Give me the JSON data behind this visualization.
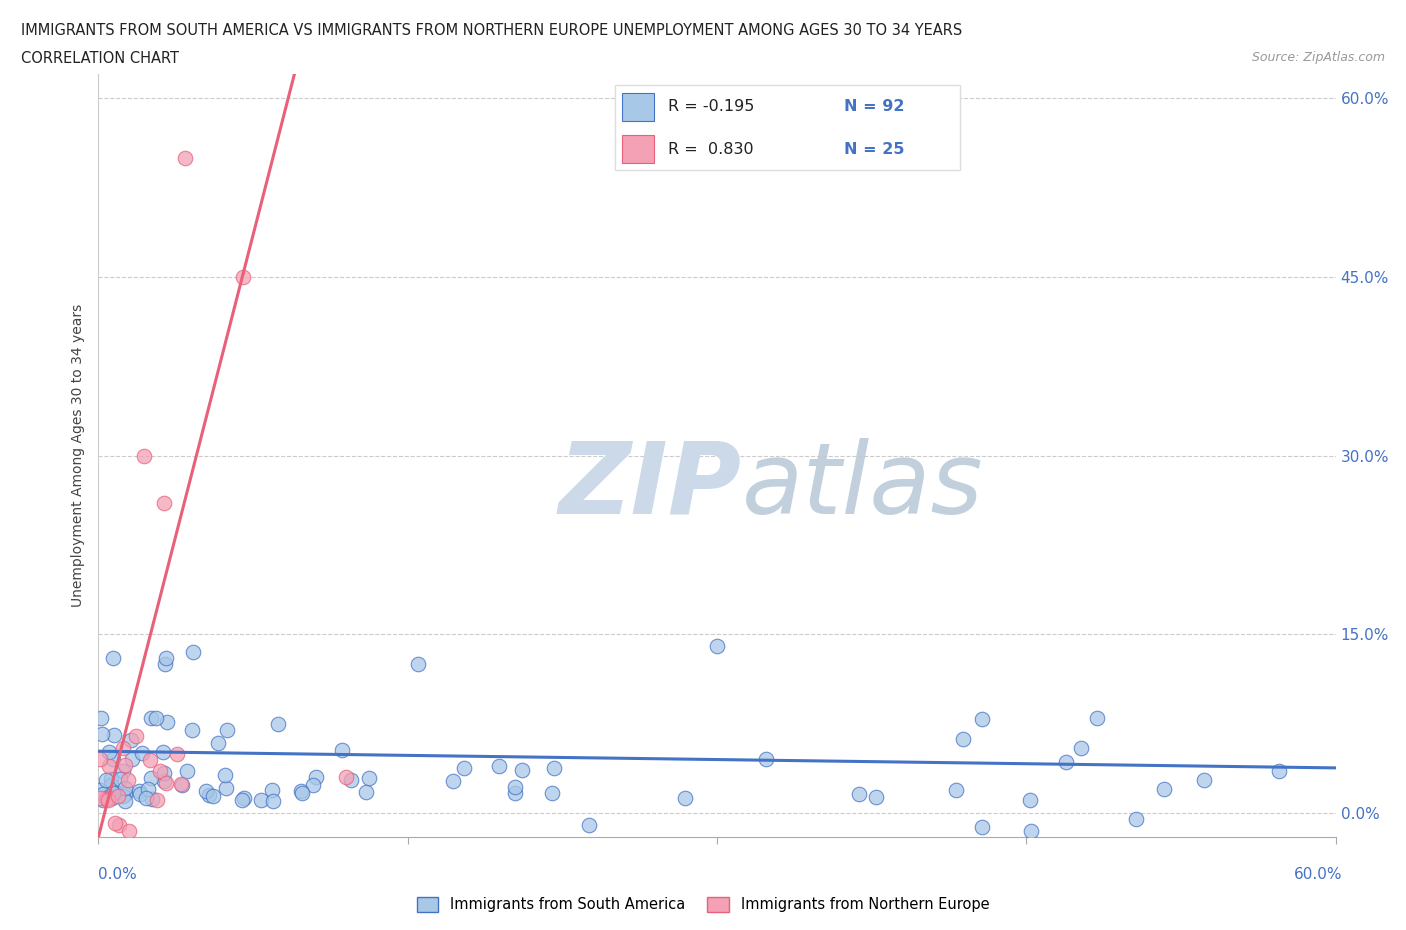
{
  "title_line1": "IMMIGRANTS FROM SOUTH AMERICA VS IMMIGRANTS FROM NORTHERN EUROPE UNEMPLOYMENT AMONG AGES 30 TO 34 YEARS",
  "title_line2": "CORRELATION CHART",
  "source_text": "Source: ZipAtlas.com",
  "ylabel": "Unemployment Among Ages 30 to 34 years",
  "ytick_values": [
    0.0,
    0.15,
    0.3,
    0.45,
    0.6
  ],
  "xlim": [
    0.0,
    0.6
  ],
  "ylim": [
    -0.02,
    0.62
  ],
  "color_blue": "#a8c8e8",
  "color_blue_line": "#4472c4",
  "color_pink": "#f4a0b5",
  "color_pink_line": "#e8607a",
  "watermark_zip": "ZIP",
  "watermark_atlas": "atlas",
  "blue_trendline_x0": 0.0,
  "blue_trendline_y0": 0.052,
  "blue_trendline_x1": 0.6,
  "blue_trendline_y1": 0.038,
  "pink_trendline_x0": 0.0,
  "pink_trendline_y0": -0.02,
  "pink_trendline_x1": 0.095,
  "pink_trendline_y1": 0.62,
  "legend_R_blue": "R = -0.195",
  "legend_N_blue": "N = 92",
  "legend_R_pink": "R =  0.830",
  "legend_N_pink": "N = 25"
}
